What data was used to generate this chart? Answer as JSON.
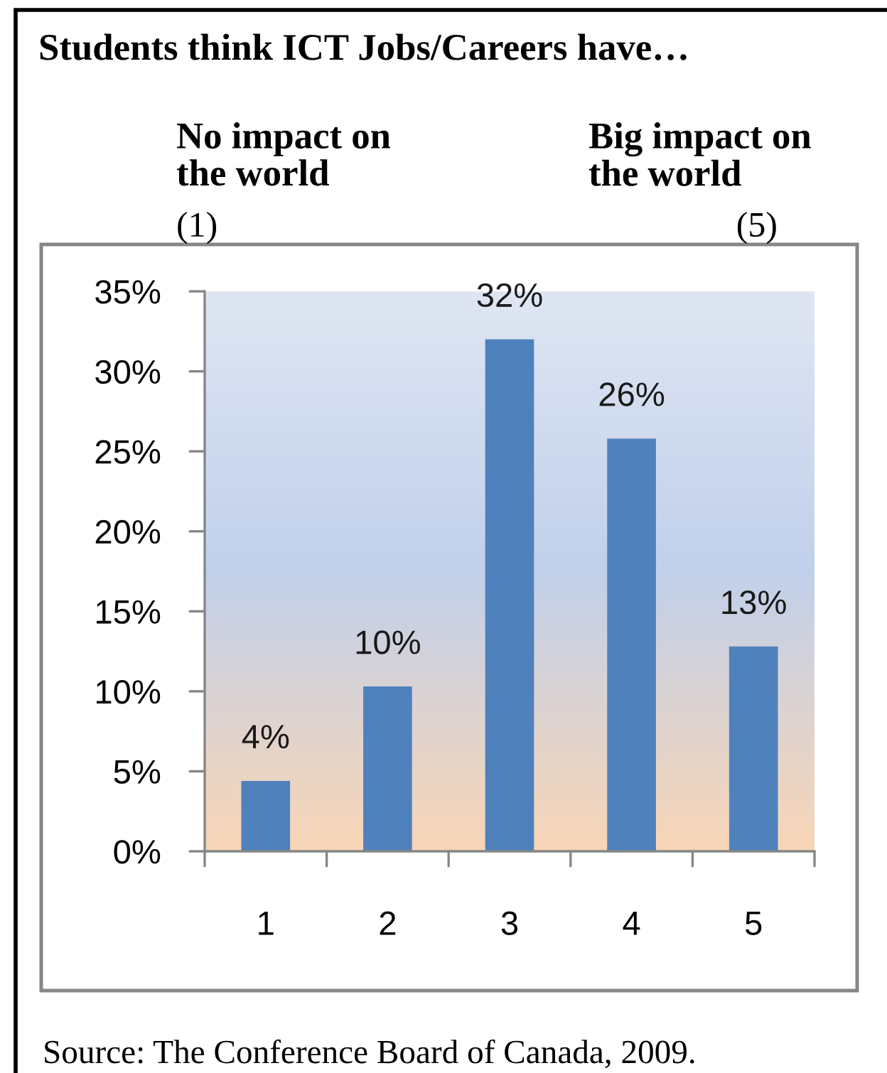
{
  "chart_data": {
    "type": "bar",
    "title": "Students think ICT Jobs/Careers have…",
    "categories": [
      "1",
      "2",
      "3",
      "4",
      "5"
    ],
    "values": [
      4.4,
      10.3,
      32,
      25.8,
      12.8
    ],
    "value_labels": [
      "4%",
      "10%",
      "32%",
      "26%",
      "13%"
    ],
    "color": "#4f81bd",
    "ylim": [
      0,
      35
    ],
    "yticks": [
      {
        "value": 0,
        "label": "0%"
      },
      {
        "value": 5,
        "label": "5%"
      },
      {
        "value": 10,
        "label": "10%"
      },
      {
        "value": 15,
        "label": "15%"
      },
      {
        "value": 20,
        "label": "20%"
      },
      {
        "value": 25,
        "label": "25%"
      },
      {
        "value": 30,
        "label": "30%"
      },
      {
        "value": 35,
        "label": "35%"
      }
    ],
    "grid": false,
    "annotations": [
      "No impact on\nthe world",
      "(1)",
      "Big impact on\nthe world",
      "(5)",
      "Source: The Conference Board of Canada, 2009."
    ]
  }
}
